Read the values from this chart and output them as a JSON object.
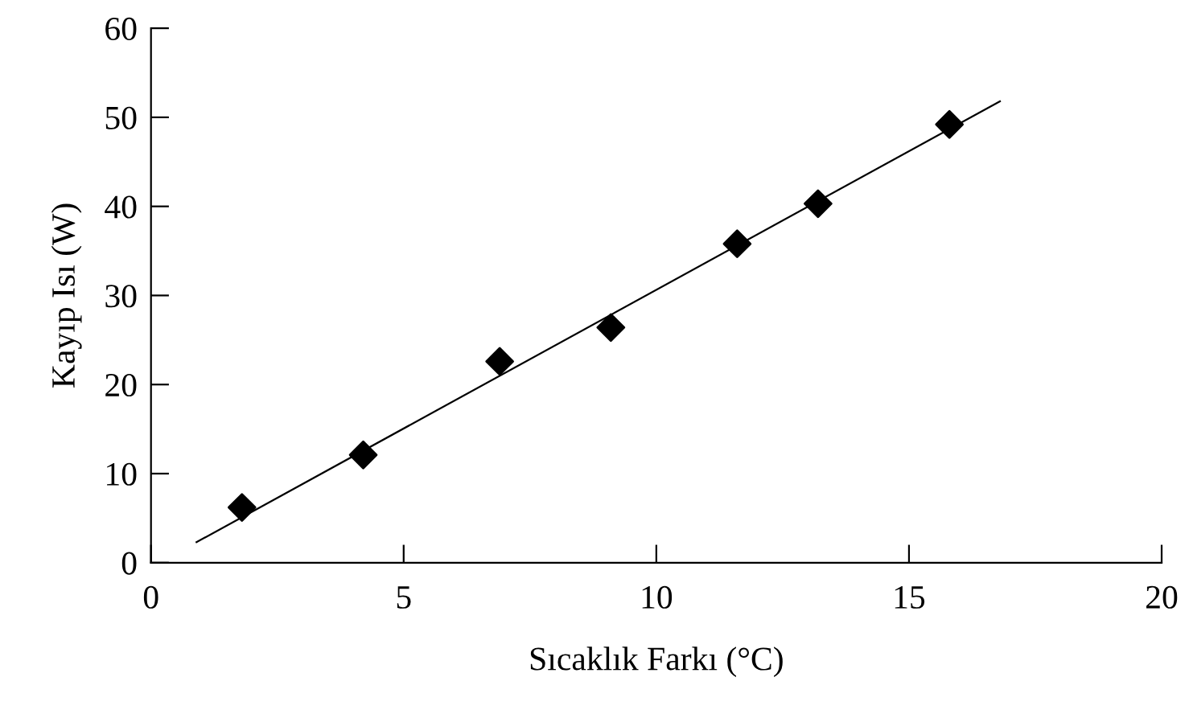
{
  "chart_data": {
    "type": "scatter",
    "xlabel": "Sıcaklık Farkı (°C)",
    "ylabel": "Kayıp Isı (W)",
    "xlim": [
      0,
      20
    ],
    "ylim": [
      0,
      60
    ],
    "xticks": [
      0,
      5,
      10,
      15,
      20
    ],
    "yticks": [
      0,
      10,
      20,
      30,
      40,
      50,
      60
    ],
    "grid": false,
    "legend": false,
    "series": [
      {
        "color": "#000000",
        "marker": "diamond",
        "x": [
          1.8,
          4.2,
          6.9,
          9.1,
          11.6,
          13.2,
          15.8
        ],
        "values": [
          6.2,
          12.1,
          22.6,
          26.4,
          35.8,
          40.3,
          49.2
        ]
      },
      {
        "type": "line",
        "color": "#000000",
        "marker": "none",
        "line_style": "solid",
        "x": [
          0.9,
          16.8
        ],
        "values": [
          2.3,
          51.8
        ]
      }
    ]
  }
}
